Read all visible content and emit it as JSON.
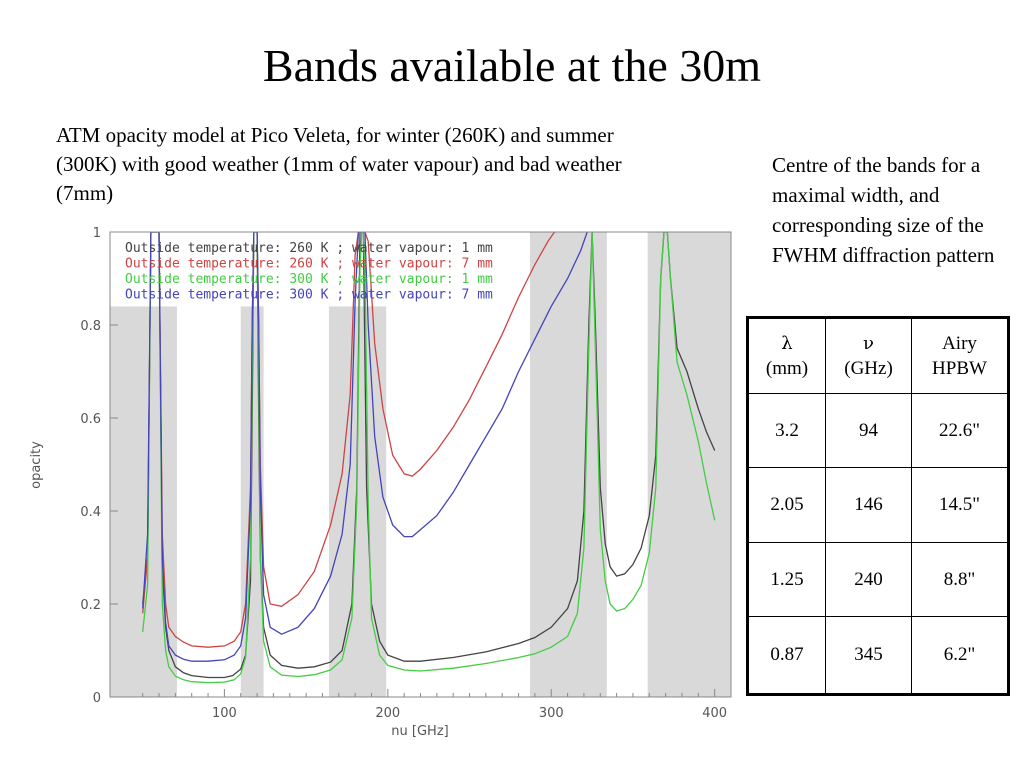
{
  "slide": {
    "title": "Bands available at the 30m",
    "caption": "ATM opacity model at Pico Veleta, for winter (260K) and summer (300K) with good weather (1mm of water vapour) and bad weather (7mm)",
    "side_note": "Centre of the bands for a maximal width, and corresponding size of the FWHM diffraction pattern"
  },
  "table": {
    "headers": [
      {
        "symbol": "λ",
        "unit": "(mm)"
      },
      {
        "symbol": "ν",
        "unit": "(GHz)"
      },
      {
        "symbol": "Airy",
        "unit": "HPBW"
      }
    ],
    "rows": [
      [
        "3.2",
        "94",
        "22.6\""
      ],
      [
        "2.05",
        "146",
        "14.5\""
      ],
      [
        "1.25",
        "240",
        "8.8\""
      ],
      [
        "0.87",
        "345",
        "6.2\""
      ]
    ]
  },
  "chart_data": {
    "type": "line",
    "title": "",
    "xlabel": "nu [GHz]",
    "ylabel": "opacity",
    "xlim": [
      30,
      410
    ],
    "ylim": [
      0,
      1
    ],
    "x_ticks": [
      100,
      200,
      300,
      400
    ],
    "y_ticks": [
      0,
      0.2,
      0.4,
      0.6,
      0.8,
      1
    ],
    "y_tick_labels": [
      "0",
      "0.2",
      "0.4",
      "0.6",
      "0.8",
      "1"
    ],
    "grid": false,
    "legend_position": "top-left",
    "shaded_bands": [
      {
        "x_start": 30,
        "x_end": 71,
        "y_top": 0.84
      },
      {
        "x_start": 110,
        "x_end": 124,
        "y_top": 0.84
      },
      {
        "x_start": 164,
        "x_end": 199,
        "y_top": 0.84
      },
      {
        "x_start": 287,
        "x_end": 334,
        "y_top": 1.0
      },
      {
        "x_start": 359,
        "x_end": 410,
        "y_top": 1.0
      }
    ],
    "series": [
      {
        "name": "Outside temperature: 260 K ; water vapour: 1 mm",
        "color": "#444444",
        "points": [
          [
            50,
            0.2
          ],
          [
            53,
            0.3
          ],
          [
            55,
            1.0
          ],
          [
            60,
            1.0
          ],
          [
            62,
            0.28
          ],
          [
            64,
            0.15
          ],
          [
            66,
            0.1
          ],
          [
            70,
            0.065
          ],
          [
            75,
            0.052
          ],
          [
            80,
            0.046
          ],
          [
            90,
            0.042
          ],
          [
            100,
            0.042
          ],
          [
            105,
            0.046
          ],
          [
            110,
            0.06
          ],
          [
            113,
            0.09
          ],
          [
            116,
            0.25
          ],
          [
            117,
            0.6
          ],
          [
            118,
            1.0
          ],
          [
            120,
            1.0
          ],
          [
            121,
            0.6
          ],
          [
            122,
            0.3
          ],
          [
            124,
            0.15
          ],
          [
            128,
            0.09
          ],
          [
            135,
            0.068
          ],
          [
            145,
            0.062
          ],
          [
            155,
            0.065
          ],
          [
            165,
            0.075
          ],
          [
            172,
            0.1
          ],
          [
            178,
            0.2
          ],
          [
            181,
            0.45
          ],
          [
            183,
            1.0
          ],
          [
            185,
            1.0
          ],
          [
            187,
            0.45
          ],
          [
            190,
            0.2
          ],
          [
            195,
            0.12
          ],
          [
            200,
            0.09
          ],
          [
            210,
            0.077
          ],
          [
            220,
            0.077
          ],
          [
            240,
            0.085
          ],
          [
            260,
            0.097
          ],
          [
            280,
            0.115
          ],
          [
            290,
            0.128
          ],
          [
            300,
            0.15
          ],
          [
            310,
            0.19
          ],
          [
            316,
            0.25
          ],
          [
            320,
            0.4
          ],
          [
            323,
            0.8
          ],
          [
            325,
            1.0
          ],
          [
            327,
            0.8
          ],
          [
            330,
            0.45
          ],
          [
            333,
            0.33
          ],
          [
            336,
            0.28
          ],
          [
            340,
            0.26
          ],
          [
            345,
            0.265
          ],
          [
            350,
            0.285
          ],
          [
            355,
            0.32
          ],
          [
            360,
            0.39
          ],
          [
            364,
            0.52
          ],
          [
            367,
            0.9
          ],
          [
            369,
            1.0
          ],
          [
            371,
            1.0
          ],
          [
            373,
            0.9
          ],
          [
            377,
            0.75
          ],
          [
            383,
            0.7
          ],
          [
            390,
            0.62
          ],
          [
            395,
            0.57
          ],
          [
            400,
            0.53
          ]
        ]
      },
      {
        "name": "Outside temperature: 260 K ; water vapour: 7 mm",
        "color": "#cc4444",
        "points": [
          [
            50,
            0.18
          ],
          [
            53,
            0.3
          ],
          [
            55,
            1.0
          ],
          [
            60,
            1.0
          ],
          [
            62,
            0.35
          ],
          [
            64,
            0.2
          ],
          [
            66,
            0.15
          ],
          [
            70,
            0.13
          ],
          [
            75,
            0.118
          ],
          [
            80,
            0.11
          ],
          [
            90,
            0.107
          ],
          [
            100,
            0.11
          ],
          [
            106,
            0.12
          ],
          [
            110,
            0.14
          ],
          [
            113,
            0.2
          ],
          [
            116,
            0.45
          ],
          [
            117,
            0.8
          ],
          [
            118,
            1.0
          ],
          [
            120,
            1.0
          ],
          [
            121,
            0.8
          ],
          [
            122,
            0.5
          ],
          [
            124,
            0.28
          ],
          [
            128,
            0.2
          ],
          [
            135,
            0.195
          ],
          [
            145,
            0.22
          ],
          [
            155,
            0.27
          ],
          [
            165,
            0.37
          ],
          [
            172,
            0.48
          ],
          [
            177,
            0.65
          ],
          [
            180,
            0.95
          ],
          [
            182,
            1.0
          ],
          [
            186,
            1.0
          ],
          [
            188,
            0.98
          ],
          [
            192,
            0.76
          ],
          [
            197,
            0.62
          ],
          [
            203,
            0.52
          ],
          [
            210,
            0.48
          ],
          [
            215,
            0.475
          ],
          [
            220,
            0.49
          ],
          [
            230,
            0.53
          ],
          [
            240,
            0.58
          ],
          [
            250,
            0.64
          ],
          [
            260,
            0.71
          ],
          [
            270,
            0.78
          ],
          [
            280,
            0.86
          ],
          [
            290,
            0.93
          ],
          [
            298,
            0.98
          ],
          [
            302,
            1.0
          ]
        ]
      },
      {
        "name": "Outside temperature: 300 K ; water vapour: 1 mm",
        "color": "#44cc44",
        "points": [
          [
            50,
            0.14
          ],
          [
            53,
            0.24
          ],
          [
            55,
            1.0
          ],
          [
            60,
            1.0
          ],
          [
            62,
            0.2
          ],
          [
            64,
            0.1
          ],
          [
            66,
            0.065
          ],
          [
            70,
            0.045
          ],
          [
            75,
            0.037
          ],
          [
            80,
            0.033
          ],
          [
            90,
            0.031
          ],
          [
            100,
            0.032
          ],
          [
            106,
            0.037
          ],
          [
            110,
            0.05
          ],
          [
            113,
            0.085
          ],
          [
            116,
            0.3
          ],
          [
            117,
            0.7
          ],
          [
            118,
            1.0
          ],
          [
            120,
            1.0
          ],
          [
            121,
            0.7
          ],
          [
            122,
            0.3
          ],
          [
            124,
            0.12
          ],
          [
            128,
            0.065
          ],
          [
            135,
            0.047
          ],
          [
            145,
            0.044
          ],
          [
            155,
            0.048
          ],
          [
            165,
            0.058
          ],
          [
            172,
            0.08
          ],
          [
            178,
            0.17
          ],
          [
            181,
            0.42
          ],
          [
            183,
            0.92
          ],
          [
            184,
            1.0
          ],
          [
            185,
            1.0
          ],
          [
            186,
            0.92
          ],
          [
            188,
            0.42
          ],
          [
            190,
            0.17
          ],
          [
            195,
            0.09
          ],
          [
            200,
            0.068
          ],
          [
            210,
            0.058
          ],
          [
            220,
            0.056
          ],
          [
            240,
            0.062
          ],
          [
            260,
            0.072
          ],
          [
            280,
            0.085
          ],
          [
            290,
            0.093
          ],
          [
            300,
            0.107
          ],
          [
            310,
            0.13
          ],
          [
            316,
            0.18
          ],
          [
            320,
            0.32
          ],
          [
            323,
            0.75
          ],
          [
            325,
            1.0
          ],
          [
            327,
            0.75
          ],
          [
            330,
            0.36
          ],
          [
            333,
            0.25
          ],
          [
            336,
            0.2
          ],
          [
            340,
            0.185
          ],
          [
            345,
            0.19
          ],
          [
            350,
            0.21
          ],
          [
            355,
            0.24
          ],
          [
            360,
            0.31
          ],
          [
            364,
            0.45
          ],
          [
            367,
            0.9
          ],
          [
            369,
            1.0
          ],
          [
            371,
            1.0
          ],
          [
            373,
            0.9
          ],
          [
            377,
            0.72
          ],
          [
            383,
            0.65
          ],
          [
            390,
            0.55
          ],
          [
            395,
            0.46
          ],
          [
            400,
            0.38
          ]
        ]
      },
      {
        "name": "Outside temperature: 300 K ; water vapour: 7 mm",
        "color": "#4444bb",
        "points": [
          [
            50,
            0.19
          ],
          [
            53,
            0.35
          ],
          [
            55,
            1.0
          ],
          [
            60,
            1.0
          ],
          [
            62,
            0.3
          ],
          [
            64,
            0.16
          ],
          [
            66,
            0.11
          ],
          [
            70,
            0.09
          ],
          [
            75,
            0.081
          ],
          [
            80,
            0.077
          ],
          [
            90,
            0.077
          ],
          [
            100,
            0.08
          ],
          [
            106,
            0.09
          ],
          [
            110,
            0.11
          ],
          [
            113,
            0.17
          ],
          [
            116,
            0.42
          ],
          [
            117,
            0.8
          ],
          [
            118,
            1.0
          ],
          [
            120,
            1.0
          ],
          [
            121,
            0.8
          ],
          [
            122,
            0.45
          ],
          [
            124,
            0.22
          ],
          [
            128,
            0.15
          ],
          [
            135,
            0.135
          ],
          [
            145,
            0.15
          ],
          [
            155,
            0.19
          ],
          [
            165,
            0.26
          ],
          [
            172,
            0.35
          ],
          [
            177,
            0.5
          ],
          [
            180,
            0.85
          ],
          [
            182,
            1.0
          ],
          [
            186,
            1.0
          ],
          [
            188,
            0.8
          ],
          [
            192,
            0.56
          ],
          [
            197,
            0.43
          ],
          [
            203,
            0.37
          ],
          [
            210,
            0.345
          ],
          [
            215,
            0.345
          ],
          [
            220,
            0.36
          ],
          [
            230,
            0.39
          ],
          [
            240,
            0.44
          ],
          [
            250,
            0.5
          ],
          [
            260,
            0.56
          ],
          [
            270,
            0.62
          ],
          [
            280,
            0.7
          ],
          [
            290,
            0.77
          ],
          [
            300,
            0.84
          ],
          [
            310,
            0.9
          ],
          [
            318,
            0.96
          ],
          [
            322,
            1.0
          ]
        ]
      }
    ]
  }
}
